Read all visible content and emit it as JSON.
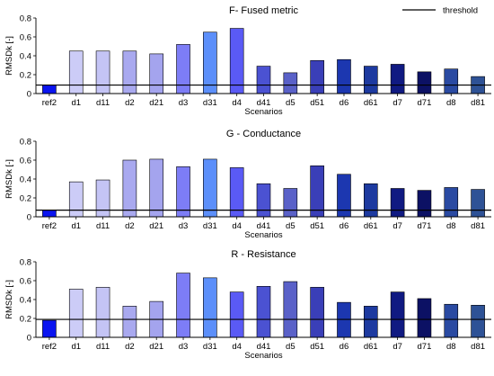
{
  "legend": {
    "label": "threshold",
    "position": "top-right",
    "line_color": "#000000"
  },
  "chart_data": [
    {
      "type": "bar",
      "title": "F- Fused metric",
      "xlabel": "Scenarios",
      "ylabel": "RMSDk [-]",
      "ylim": [
        0,
        0.8
      ],
      "yticks": [
        "0",
        "0.2",
        "0.4",
        "0.6",
        "0.8"
      ],
      "grid": false,
      "threshold": 0.09,
      "categories": [
        "ref2",
        "d1",
        "d11",
        "d2",
        "d21",
        "d3",
        "d31",
        "d4",
        "d41",
        "d5",
        "d51",
        "d6",
        "d61",
        "d7",
        "d71",
        "d8",
        "d81"
      ],
      "values": [
        0.09,
        0.45,
        0.45,
        0.45,
        0.42,
        0.52,
        0.65,
        0.69,
        0.29,
        0.22,
        0.35,
        0.36,
        0.29,
        0.31,
        0.23,
        0.26,
        0.18
      ],
      "colors": [
        "#0a14f0",
        "#ccccf7",
        "#c4c4f5",
        "#a9a9ef",
        "#a4a4ee",
        "#7d7df6",
        "#5c8ffa",
        "#5a5af5",
        "#4b52d2",
        "#5a61c8",
        "#3a3fb8",
        "#1c37b0",
        "#1d3aa0",
        "#101a82",
        "#0c1164",
        "#2a4aa2",
        "#2e5296"
      ]
    },
    {
      "type": "bar",
      "title": "G - Conductance",
      "xlabel": "Scenarios",
      "ylabel": "RMSDk [-]",
      "ylim": [
        0,
        0.8
      ],
      "yticks": [
        "0",
        "0.2",
        "0.4",
        "0.6",
        "0.8"
      ],
      "grid": false,
      "threshold": 0.07,
      "categories": [
        "ref2",
        "d1",
        "d11",
        "d2",
        "d21",
        "d3",
        "d31",
        "d4",
        "d41",
        "d5",
        "d51",
        "d6",
        "d61",
        "d7",
        "d71",
        "d8",
        "d81"
      ],
      "values": [
        0.07,
        0.37,
        0.39,
        0.6,
        0.61,
        0.53,
        0.61,
        0.52,
        0.35,
        0.3,
        0.54,
        0.45,
        0.35,
        0.3,
        0.28,
        0.31,
        0.29
      ],
      "colors": [
        "#0a14f0",
        "#ccccf7",
        "#c4c4f5",
        "#a9a9ef",
        "#a4a4ee",
        "#7d7df6",
        "#5c8ffa",
        "#5a5af5",
        "#4b52d2",
        "#5a61c8",
        "#3a3fb8",
        "#1c37b0",
        "#1d3aa0",
        "#101a82",
        "#0c1164",
        "#2a4aa2",
        "#2e5296"
      ]
    },
    {
      "type": "bar",
      "title": "R - Resistance",
      "xlabel": "Scenarios",
      "ylabel": "RMSDk [-]",
      "ylim": [
        0,
        0.8
      ],
      "yticks": [
        "0",
        "0.2",
        "0.4",
        "0.6",
        "0.8"
      ],
      "grid": false,
      "threshold": 0.19,
      "categories": [
        "ref2",
        "d1",
        "d11",
        "d2",
        "d21",
        "d3",
        "d31",
        "d4",
        "d41",
        "d5",
        "d51",
        "d6",
        "d61",
        "d7",
        "d71",
        "d8",
        "d81"
      ],
      "values": [
        0.18,
        0.51,
        0.53,
        0.33,
        0.38,
        0.68,
        0.63,
        0.48,
        0.54,
        0.59,
        0.53,
        0.37,
        0.33,
        0.48,
        0.41,
        0.35,
        0.34
      ],
      "colors": [
        "#0a14f0",
        "#ccccf7",
        "#c4c4f5",
        "#a9a9ef",
        "#a4a4ee",
        "#7d7df6",
        "#5c8ffa",
        "#5a5af5",
        "#4b52d2",
        "#5a61c8",
        "#3a3fb8",
        "#1c37b0",
        "#1d3aa0",
        "#101a82",
        "#0c1164",
        "#2a4aa2",
        "#2e5296"
      ]
    }
  ]
}
